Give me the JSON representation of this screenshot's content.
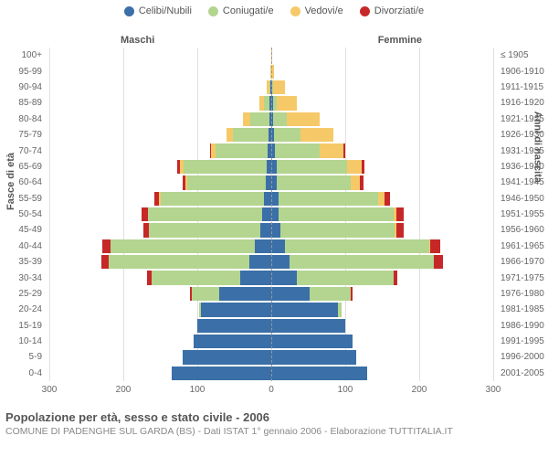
{
  "legend": [
    {
      "label": "Celibi/Nubili",
      "color": "#3a6fa7"
    },
    {
      "label": "Coniugati/e",
      "color": "#b3d58f"
    },
    {
      "label": "Vedovi/e",
      "color": "#f6c968"
    },
    {
      "label": "Divorziati/e",
      "color": "#c62828"
    }
  ],
  "side_labels": {
    "left": "Maschi",
    "right": "Femmine"
  },
  "axis_titles": {
    "left": "Fasce di età",
    "right": "Anni di nascita"
  },
  "colors": {
    "celibi": "#3a6fa7",
    "coniugati": "#b3d58f",
    "vedovi": "#f6c968",
    "divorziati": "#c62828",
    "grid": "#e0e0e0",
    "center": "#999"
  },
  "x": {
    "max": 300,
    "ticks": [
      300,
      200,
      100,
      0,
      100,
      200,
      300
    ]
  },
  "age_bands": [
    "0-4",
    "5-9",
    "10-14",
    "15-19",
    "20-24",
    "25-29",
    "30-34",
    "35-39",
    "40-44",
    "45-49",
    "50-54",
    "55-59",
    "60-64",
    "65-69",
    "70-74",
    "75-79",
    "80-84",
    "85-89",
    "90-94",
    "95-99",
    "100+"
  ],
  "birth_bands": [
    "2001-2005",
    "1996-2000",
    "1991-1995",
    "1986-1990",
    "1981-1985",
    "1976-1980",
    "1971-1975",
    "1966-1970",
    "1961-1965",
    "1956-1960",
    "1951-1955",
    "1946-1950",
    "1941-1945",
    "1936-1940",
    "1931-1935",
    "1926-1930",
    "1921-1925",
    "1916-1920",
    "1911-1915",
    "1906-1910",
    "≤ 1905"
  ],
  "data": [
    {
      "m": [
        135,
        0,
        0,
        0
      ],
      "f": [
        130,
        0,
        0,
        0
      ]
    },
    {
      "m": [
        120,
        0,
        0,
        0
      ],
      "f": [
        115,
        0,
        0,
        0
      ]
    },
    {
      "m": [
        105,
        0,
        0,
        0
      ],
      "f": [
        110,
        0,
        0,
        0
      ]
    },
    {
      "m": [
        100,
        0,
        0,
        0
      ],
      "f": [
        100,
        0,
        0,
        0
      ]
    },
    {
      "m": [
        95,
        3,
        0,
        0
      ],
      "f": [
        90,
        5,
        0,
        0
      ]
    },
    {
      "m": [
        70,
        38,
        0,
        2
      ],
      "f": [
        52,
        55,
        0,
        3
      ]
    },
    {
      "m": [
        42,
        120,
        0,
        6
      ],
      "f": [
        35,
        130,
        0,
        5
      ]
    },
    {
      "m": [
        30,
        190,
        0,
        10
      ],
      "f": [
        25,
        195,
        0,
        12
      ]
    },
    {
      "m": [
        22,
        195,
        0,
        12
      ],
      "f": [
        18,
        195,
        2,
        14
      ]
    },
    {
      "m": [
        15,
        150,
        0,
        8
      ],
      "f": [
        12,
        155,
        2,
        10
      ]
    },
    {
      "m": [
        12,
        155,
        0,
        8
      ],
      "f": [
        10,
        155,
        4,
        10
      ]
    },
    {
      "m": [
        10,
        140,
        2,
        6
      ],
      "f": [
        10,
        135,
        8,
        8
      ]
    },
    {
      "m": [
        8,
        105,
        3,
        4
      ],
      "f": [
        8,
        100,
        12,
        5
      ]
    },
    {
      "m": [
        6,
        112,
        5,
        4
      ],
      "f": [
        7,
        95,
        20,
        4
      ]
    },
    {
      "m": [
        5,
        70,
        6,
        2
      ],
      "f": [
        5,
        60,
        32,
        3
      ]
    },
    {
      "m": [
        4,
        48,
        8,
        0
      ],
      "f": [
        4,
        35,
        45,
        0
      ]
    },
    {
      "m": [
        3,
        25,
        10,
        0
      ],
      "f": [
        3,
        18,
        45,
        0
      ]
    },
    {
      "m": [
        2,
        8,
        6,
        0
      ],
      "f": [
        2,
        5,
        28,
        0
      ]
    },
    {
      "m": [
        1,
        2,
        3,
        0
      ],
      "f": [
        1,
        2,
        15,
        0
      ]
    },
    {
      "m": [
        0,
        0,
        1,
        0
      ],
      "f": [
        0,
        0,
        4,
        0
      ]
    },
    {
      "m": [
        0,
        0,
        0,
        0
      ],
      "f": [
        0,
        0,
        1,
        0
      ]
    }
  ],
  "footer": {
    "title": "Popolazione per età, sesso e stato civile - 2006",
    "sub": "COMUNE DI PADENGHE SUL GARDA (BS) - Dati ISTAT 1° gennaio 2006 - Elaborazione TUTTITALIA.IT"
  }
}
